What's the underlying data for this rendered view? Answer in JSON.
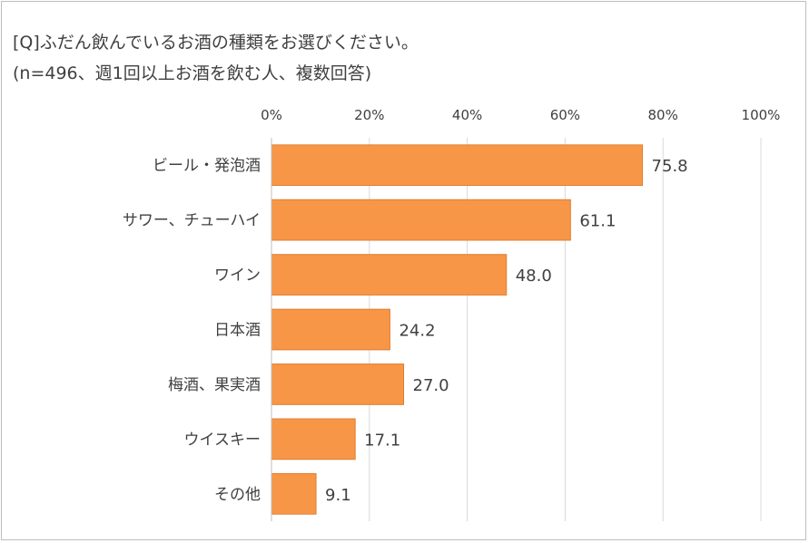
{
  "chart_data": {
    "type": "bar",
    "orientation": "horizontal",
    "title": "[Q]ふだん飲んでいるお酒の種類をお選びください。",
    "subtitle": "(n=496、週1回以上お酒を飲む人、複数回答)",
    "categories": [
      "ビール・発泡酒",
      "サワー、チューハイ",
      "ワイン",
      "日本酒",
      "梅酒、果実酒",
      "ウイスキー",
      "その他"
    ],
    "values": [
      75.8,
      61.1,
      48.0,
      24.2,
      27.0,
      17.1,
      9.1
    ],
    "value_labels": [
      "75.8",
      "61.1",
      "48.0",
      "24.2",
      "27.0",
      "17.1",
      "9.1"
    ],
    "xlim": [
      0,
      100
    ],
    "xticks": [
      0,
      20,
      40,
      60,
      80,
      100
    ],
    "xtick_labels": [
      "0%",
      "20%",
      "40%",
      "60%",
      "80%",
      "100%"
    ],
    "axis_position": "top",
    "grid": true,
    "legend": "none",
    "bar_color": "#f79646",
    "bar_edge_color": "#e07e2f",
    "grid_color": "#d9d9d9"
  }
}
